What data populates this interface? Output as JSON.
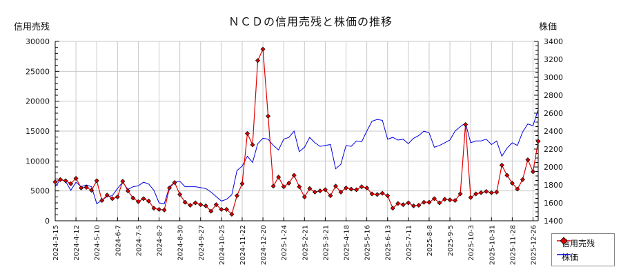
{
  "title": "ＮＣＤの信用売残と株価の推移",
  "axes": {
    "left_label": "信用売残",
    "right_label": "株価",
    "left_ticks": [
      "0",
      "5000",
      "10000",
      "15000",
      "20000",
      "25000",
      "30000"
    ],
    "right_ticks": [
      "1400",
      "1600",
      "1800",
      "2000",
      "2200",
      "2400",
      "2600",
      "2800",
      "3000",
      "3200",
      "3400"
    ],
    "x_ticks": [
      "2024-3-15",
      "2024-4-12",
      "2024-5-10",
      "2024-6-7",
      "2024-7-5",
      "2024-8-2",
      "2024-8-30",
      "2024-9-27",
      "2024-10-25",
      "2024-11-22",
      "2024-12-20",
      "2025-1-24",
      "2025-2-21",
      "2025-3-21",
      "2025-4-18",
      "2025-5-16",
      "2025-6-13",
      "2025-7-11",
      "2025-8-8",
      "2025-9-5",
      "2025-10-3",
      "2025-10-31",
      "2025-11-28",
      "2025-12-26"
    ]
  },
  "legend": {
    "items": [
      {
        "label": "信用売残",
        "color": "#e00000"
      },
      {
        "label": "株価",
        "color": "#0000e0"
      }
    ]
  },
  "chart_data": {
    "type": "line",
    "title": "ＮＣＤの信用売残と株価の推移",
    "xlabel": "",
    "ylabel": "信用売残",
    "ylabel_right": "株価",
    "ylim": [
      0,
      30000
    ],
    "ylim_right": [
      1400,
      3400
    ],
    "grid": true,
    "legend_position": "right-bottom",
    "x_tick_labels": [
      "2024-3-15",
      "2024-4-12",
      "2024-5-10",
      "2024-6-7",
      "2024-7-5",
      "2024-8-2",
      "2024-8-30",
      "2024-9-27",
      "2024-10-25",
      "2024-11-22",
      "2024-12-20",
      "2025-1-24",
      "2025-2-21",
      "2025-3-21",
      "2025-4-18",
      "2025-5-16",
      "2025-6-13",
      "2025-7-11",
      "2025-8-8",
      "2025-9-5",
      "2025-10-3",
      "2025-10-31",
      "2025-11-28",
      "2025-12-26"
    ],
    "series": [
      {
        "name": "信用売残",
        "axis": "left",
        "color": "#e00000",
        "marker": "diamond",
        "values": [
          6500,
          6900,
          6700,
          6200,
          7100,
          5500,
          5600,
          5100,
          6700,
          3400,
          4300,
          3700,
          4000,
          6600,
          5000,
          3800,
          3200,
          3700,
          3300,
          2100,
          1900,
          1800,
          5500,
          6400,
          4400,
          3100,
          2600,
          3000,
          2700,
          2500,
          1600,
          2700,
          1900,
          1900,
          1100,
          4200,
          6200,
          14600,
          12700,
          26800,
          28700,
          17500,
          5800,
          7300,
          5700,
          6300,
          7600,
          5700,
          4000,
          5400,
          4800,
          5000,
          5200,
          4200,
          5800,
          4800,
          5500,
          5300,
          5200,
          5700,
          5500,
          4500,
          4400,
          4600,
          4200,
          2100,
          2900,
          2700,
          3000,
          2500,
          2600,
          3100,
          3100,
          3700,
          3000,
          3600,
          3500,
          3400,
          4500,
          16100,
          3900,
          4500,
          4700,
          4900,
          4700,
          4800,
          9300,
          7600,
          6300,
          5300,
          6900,
          10200,
          8200,
          13300
        ]
      },
      {
        "name": "株価",
        "axis": "right",
        "color": "#0000e0",
        "values": [
          1780,
          1860,
          1840,
          1740,
          1830,
          1780,
          1800,
          1780,
          1590,
          1630,
          1670,
          1680,
          1760,
          1830,
          1750,
          1780,
          1790,
          1830,
          1810,
          1740,
          1600,
          1590,
          1780,
          1830,
          1840,
          1780,
          1780,
          1780,
          1770,
          1760,
          1720,
          1670,
          1620,
          1640,
          1690,
          1960,
          2010,
          2120,
          2050,
          2260,
          2320,
          2310,
          2240,
          2190,
          2310,
          2330,
          2400,
          2170,
          2220,
          2330,
          2270,
          2230,
          2240,
          2250,
          1980,
          2030,
          2240,
          2230,
          2290,
          2280,
          2400,
          2510,
          2530,
          2520,
          2310,
          2330,
          2300,
          2310,
          2260,
          2320,
          2350,
          2400,
          2380,
          2220,
          2240,
          2270,
          2300,
          2400,
          2450,
          2490,
          2270,
          2290,
          2290,
          2310,
          2250,
          2290,
          2120,
          2210,
          2270,
          2240,
          2390,
          2480,
          2460,
          2640
        ]
      }
    ]
  }
}
